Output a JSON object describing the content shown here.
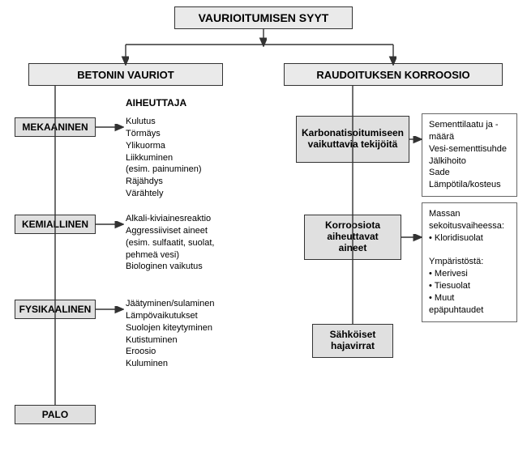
{
  "colors": {
    "bg": "#ffffff",
    "box_fill": "#e8e8e8",
    "cat_fill": "#e0e0e0",
    "border": "#333333",
    "text": "#000000"
  },
  "typography": {
    "base_font": "Arial, Helvetica, sans-serif",
    "header_size_pt": 14,
    "subheader_size_pt": 13,
    "cat_size_pt": 12,
    "body_size_pt": 11
  },
  "root": {
    "title": "VAURIOITUMISEN SYYT"
  },
  "left": {
    "header": "BETONIN VAURIOT",
    "aiheuttaja_label": "AIHEUTTAJA",
    "categories": {
      "mekaaninen": {
        "label": "MEKAANINEN",
        "items": [
          "Kulutus",
          "Törmäys",
          "Ylikuorma",
          "Liikkuminen",
          "(esim. painuminen)",
          "Räjähdys",
          "Värähtely"
        ]
      },
      "kemiallinen": {
        "label": "KEMIALLINEN",
        "items": [
          "Alkali-kiviainesreaktio",
          "Aggressiiviset aineet",
          "(esim. sulfaatit, suolat,",
          "pehmeä vesi)",
          "Biologinen vaikutus"
        ]
      },
      "fysikaalinen": {
        "label": "FYSIKAALINEN",
        "items": [
          "Jäätyminen/sulaminen",
          "Lämpövaikutukset",
          "Suolojen kiteytyminen",
          "Kutistuminen",
          "Eroosio",
          "Kuluminen"
        ]
      },
      "palo": {
        "label": "PALO"
      }
    }
  },
  "right": {
    "header": "RAUDOITUKSEN KORROOSIO",
    "karbon": {
      "title": "Karbonatisoitumiseen vaikuttavia tekijöitä",
      "items": [
        "Sementtilaatu ja -määrä",
        "Vesi-sementtisuhde",
        "Jälkihoito",
        "Sade",
        "Lämpötila/kosteus"
      ]
    },
    "korroosio": {
      "title": "Korroosiota aiheuttavat aineet",
      "items": [
        "Massan sekoitusvaiheessa:",
        "• Kloridisuolat",
        "",
        "Ympäristöstä:",
        "• Merivesi",
        "• Tiesuolat",
        "• Muut epäpuhtaudet"
      ]
    },
    "sahko": {
      "title": "Sähköiset hajavirrat"
    }
  }
}
